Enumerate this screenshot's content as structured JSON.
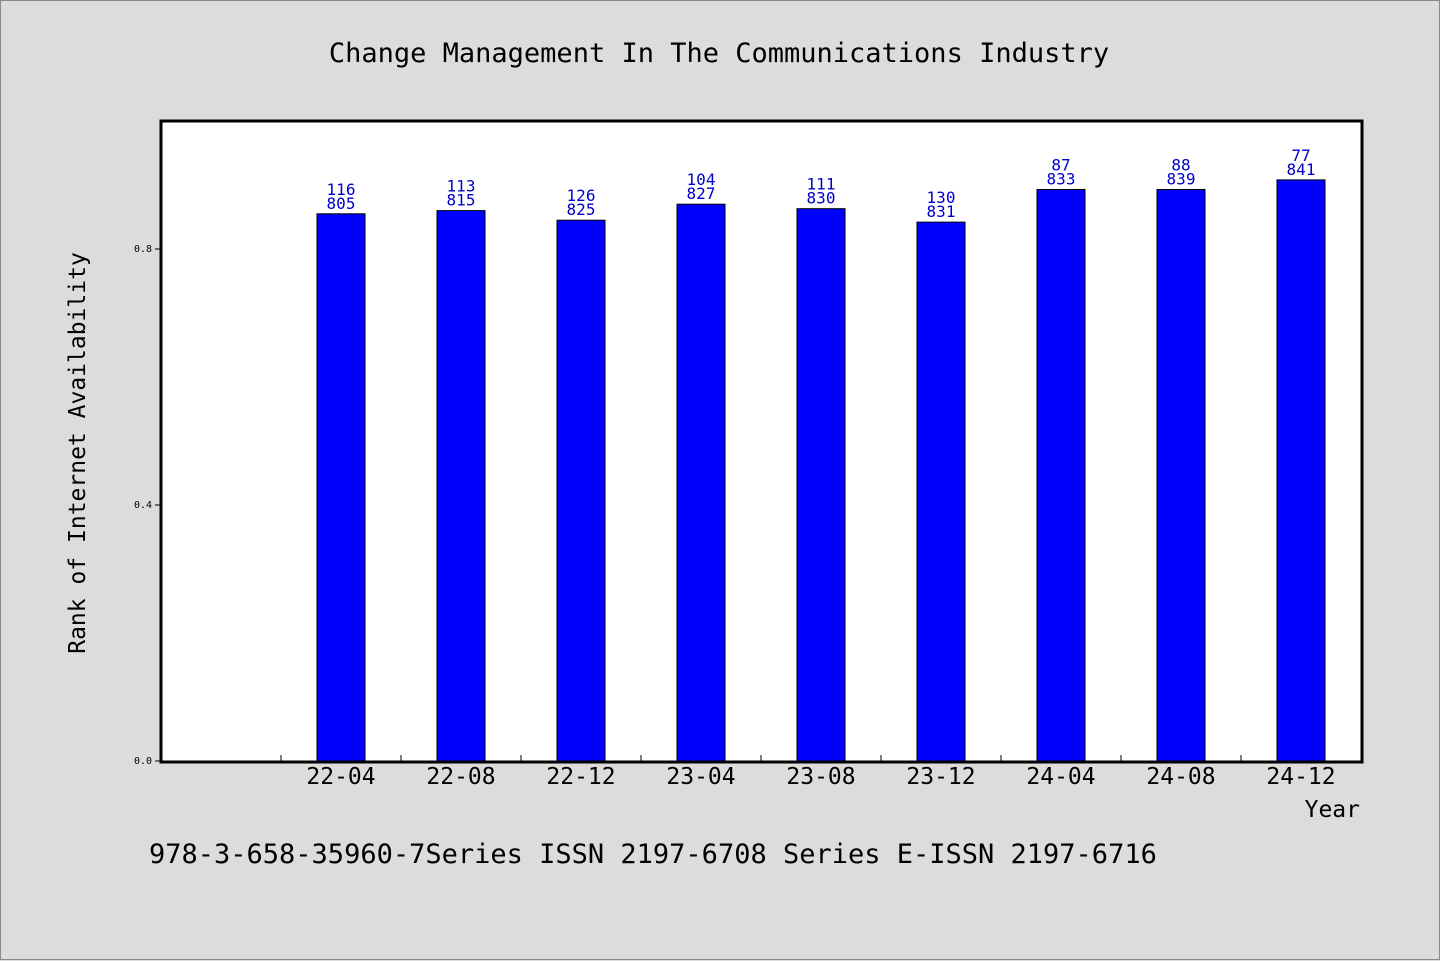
{
  "chart_data": {
    "type": "bar",
    "title": "Change Management In The Communications Industry",
    "xlabel": "Year",
    "ylabel": "Rank of Internet Availability",
    "categories": [
      "22-04",
      "22-08",
      "22-12",
      "23-04",
      "23-08",
      "23-12",
      "24-04",
      "24-08",
      "24-12"
    ],
    "values": [
      0.855,
      0.86,
      0.845,
      0.87,
      0.863,
      0.842,
      0.893,
      0.893,
      0.908
    ],
    "label_top": [
      "116",
      "113",
      "126",
      "104",
      "111",
      "130",
      "87",
      "88",
      "77"
    ],
    "label_bottom": [
      "805",
      "815",
      "825",
      "827",
      "830",
      "831",
      "833",
      "839",
      "841"
    ],
    "ylim": [
      0,
      1.0
    ],
    "yticks": [
      0.0,
      0.4,
      0.8
    ],
    "ytick_labels": [
      "0.0",
      "0.4",
      "0.8"
    ],
    "bar_color": "#0000ff",
    "label_color": "#0000cc",
    "grid": false,
    "legend": "none"
  },
  "footer": {
    "text": "978-3-658-35960-7Series ISSN 2197-6708 Series E-ISSN 2197-6716"
  }
}
